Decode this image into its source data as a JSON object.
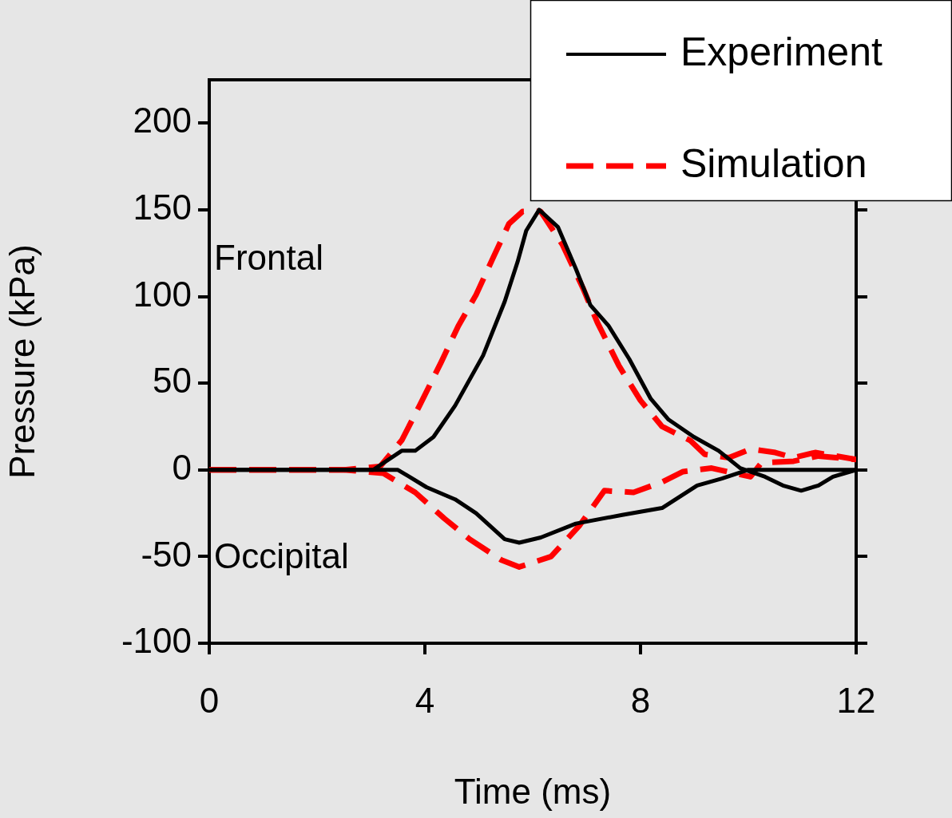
{
  "chart_data": {
    "type": "line",
    "xlabel": "Time (ms)",
    "ylabel": "Pressure (kPa)",
    "xlim": [
      0,
      12
    ],
    "xticks": [
      0,
      4,
      8,
      12
    ],
    "ylim": [
      -100,
      225
    ],
    "yticks": [
      -100,
      -50,
      0,
      50,
      100,
      150,
      200
    ],
    "grid": false,
    "legend": "top right",
    "marker": "none",
    "annotations": [
      "Frontal",
      "Occipital"
    ],
    "series": [
      {
        "name": "Experiment",
        "color": "#000000",
        "line_style": "solid",
        "x": [
          0,
          3.04,
          3.57,
          3.82,
          4.16,
          4.56,
          5.08,
          5.48,
          5.72,
          5.88,
          6.12,
          6.47,
          6.8,
          7.07,
          7.41,
          7.79,
          8.19,
          8.52,
          8.99,
          9.45,
          9.85,
          10.31,
          10.64,
          10.98,
          11.3,
          11.57,
          12
        ],
        "values": [
          0,
          0,
          11,
          11,
          19,
          37,
          66,
          97,
          120,
          138,
          150,
          140,
          116,
          95,
          83,
          64,
          41,
          29,
          19,
          11,
          1,
          -4,
          -9,
          -12,
          -9,
          -4,
          0
        ]
      },
      {
        "color": "#000000",
        "line_style": "solid",
        "x": [
          0,
          3.5,
          4.03,
          4.56,
          4.95,
          5.48,
          5.75,
          6.15,
          6.8,
          7.66,
          8.4,
          9.05,
          9.51,
          9.99,
          10.5,
          12
        ],
        "values": [
          0,
          0,
          -10,
          -17,
          -25,
          -40,
          -42,
          -39,
          -31,
          -26,
          -22,
          -9,
          -5,
          0,
          0,
          0
        ]
      },
      {
        "name": "Simulation",
        "color": "#ff0000",
        "line_style": "dashed",
        "x": [
          0,
          2.5,
          3.17,
          3.57,
          3.9,
          4.3,
          4.62,
          4.95,
          5.29,
          5.56,
          5.81,
          6.15,
          6.55,
          6.93,
          7.2,
          7.6,
          8,
          8.4,
          8.92,
          9.19,
          9.64,
          10.04,
          10.5,
          10.84,
          11.24,
          12
        ],
        "values": [
          0,
          0,
          2,
          17,
          37,
          62,
          83,
          101,
          124,
          142,
          149,
          149,
          130,
          105,
          85,
          60,
          40,
          25,
          17,
          9,
          7,
          12,
          10,
          7,
          10,
          6
        ]
      },
      {
        "color": "#ff0000",
        "line_style": "dashed",
        "x": [
          0,
          2.5,
          3.23,
          3.82,
          4.36,
          4.83,
          5.42,
          5.75,
          6.34,
          6.87,
          7.33,
          7.87,
          8.4,
          8.79,
          9.32,
          10.04,
          10.24,
          10.84,
          11.3,
          12
        ],
        "values": [
          0,
          0,
          -2,
          -13,
          -28,
          -40,
          -52,
          -56,
          -50,
          -32,
          -12,
          -13,
          -7,
          -1,
          1,
          -4,
          4,
          5,
          8,
          6
        ]
      }
    ]
  }
}
